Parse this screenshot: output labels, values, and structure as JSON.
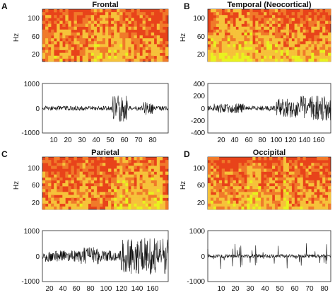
{
  "figure": {
    "panels": [
      {
        "letter": "A",
        "title": "Frontal",
        "spec_yticks": [
          "100",
          "60",
          "20"
        ],
        "spec_ylabel": "Hz",
        "wave_yticks": [
          "1000",
          "0",
          "-1000"
        ],
        "xticks": [
          "10",
          "20",
          "30",
          "40",
          "50",
          "60",
          "70",
          "80"
        ]
      },
      {
        "letter": "B",
        "title": "Temporal (Neocortical)",
        "spec_yticks": [
          "100",
          "60",
          "20"
        ],
        "spec_ylabel": "Hz",
        "wave_yticks": [
          "400",
          "200",
          "0",
          "-200",
          "-400"
        ],
        "xticks": [
          "20",
          "40",
          "60",
          "80",
          "100",
          "120",
          "140",
          "160"
        ]
      },
      {
        "letter": "C",
        "title": "Parietal",
        "spec_yticks": [
          "100",
          "60",
          "20"
        ],
        "spec_ylabel": "Hz",
        "wave_yticks": [
          "1000",
          "0",
          "-1000"
        ],
        "xticks": [
          "20",
          "40",
          "60",
          "80",
          "100",
          "120",
          "140",
          "160"
        ]
      },
      {
        "letter": "D",
        "title": "Occipital",
        "spec_yticks": [
          "100",
          "60",
          "20"
        ],
        "spec_ylabel": "Hz",
        "wave_yticks": [
          "1000",
          "0",
          "-1000"
        ],
        "xticks": [
          "10",
          "20",
          "30",
          "40",
          "50",
          "60",
          "70",
          "80"
        ]
      }
    ]
  },
  "colors": {
    "spec_background": "#e8431a",
    "spec_hot": "#f6c23a",
    "spec_peak": "#e8f21f",
    "trace": "#111111"
  }
}
